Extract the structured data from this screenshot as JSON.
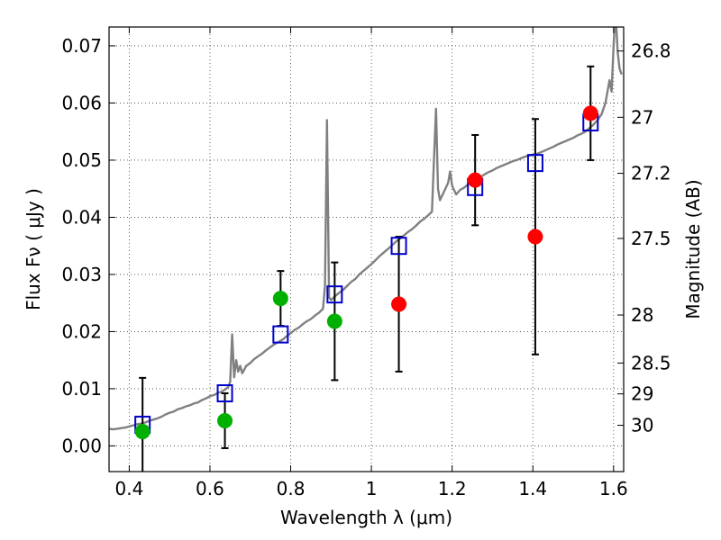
{
  "chart_data": {
    "type": "scatter",
    "xlabel": "Wavelength  λ (μm)",
    "ylabel": "Flux  Fν  ( μJy )",
    "y2label": "Magnitude (AB)",
    "xlim": [
      0.35,
      1.625
    ],
    "ylim": [
      -0.0045,
      0.0733
    ],
    "grid": true,
    "x_ticks": [
      {
        "value": 0.4,
        "label": "0.4"
      },
      {
        "value": 0.6,
        "label": "0.6"
      },
      {
        "value": 0.8,
        "label": "0.8"
      },
      {
        "value": 1.0,
        "label": "1"
      },
      {
        "value": 1.2,
        "label": "1.2"
      },
      {
        "value": 1.4,
        "label": "1.4"
      },
      {
        "value": 1.6,
        "label": "1.6"
      }
    ],
    "y_ticks": [
      {
        "value": 0.0,
        "label": "0.00"
      },
      {
        "value": 0.01,
        "label": "0.01"
      },
      {
        "value": 0.02,
        "label": "0.02"
      },
      {
        "value": 0.03,
        "label": "0.03"
      },
      {
        "value": 0.04,
        "label": "0.04"
      },
      {
        "value": 0.05,
        "label": "0.05"
      },
      {
        "value": 0.06,
        "label": "0.06"
      },
      {
        "value": 0.07,
        "label": "0.07"
      }
    ],
    "y2_ticks": [
      {
        "flux": 0.0691,
        "label": "26.8"
      },
      {
        "flux": 0.0575,
        "label": "27"
      },
      {
        "flux": 0.0477,
        "label": "27.2"
      },
      {
        "flux": 0.0363,
        "label": "27.5"
      },
      {
        "flux": 0.0229,
        "label": "28"
      },
      {
        "flux": 0.0145,
        "label": "28.5"
      },
      {
        "flux": 0.0091,
        "label": "29"
      },
      {
        "flux": 0.0036,
        "label": "30"
      }
    ],
    "template_sed": {
      "color": "#808080",
      "points": [
        [
          0.35,
          0.003
        ],
        [
          0.36,
          0.0029
        ],
        [
          0.37,
          0.003
        ],
        [
          0.38,
          0.0031
        ],
        [
          0.39,
          0.0032
        ],
        [
          0.4,
          0.0034
        ],
        [
          0.41,
          0.0036
        ],
        [
          0.42,
          0.0038
        ],
        [
          0.43,
          0.0039
        ],
        [
          0.44,
          0.0041
        ],
        [
          0.45,
          0.0044
        ],
        [
          0.46,
          0.0046
        ],
        [
          0.47,
          0.0048
        ],
        [
          0.48,
          0.0051
        ],
        [
          0.49,
          0.0055
        ],
        [
          0.5,
          0.0058
        ],
        [
          0.51,
          0.006
        ],
        [
          0.52,
          0.0064
        ],
        [
          0.53,
          0.0066
        ],
        [
          0.54,
          0.0069
        ],
        [
          0.55,
          0.0071
        ],
        [
          0.56,
          0.0074
        ],
        [
          0.57,
          0.0076
        ],
        [
          0.58,
          0.008
        ],
        [
          0.59,
          0.0083
        ],
        [
          0.6,
          0.0087
        ],
        [
          0.61,
          0.0089
        ],
        [
          0.62,
          0.0093
        ],
        [
          0.63,
          0.0095
        ],
        [
          0.64,
          0.01
        ],
        [
          0.645,
          0.0103
        ],
        [
          0.65,
          0.0112
        ],
        [
          0.655,
          0.0195
        ],
        [
          0.66,
          0.012
        ],
        [
          0.665,
          0.015
        ],
        [
          0.67,
          0.013
        ],
        [
          0.675,
          0.014
        ],
        [
          0.68,
          0.0127
        ],
        [
          0.69,
          0.014
        ],
        [
          0.7,
          0.0145
        ],
        [
          0.71,
          0.0152
        ],
        [
          0.72,
          0.0157
        ],
        [
          0.73,
          0.0162
        ],
        [
          0.74,
          0.0168
        ],
        [
          0.75,
          0.0173
        ],
        [
          0.76,
          0.0178
        ],
        [
          0.77,
          0.0182
        ],
        [
          0.78,
          0.0186
        ],
        [
          0.79,
          0.0192
        ],
        [
          0.8,
          0.0197
        ],
        [
          0.81,
          0.0203
        ],
        [
          0.82,
          0.0207
        ],
        [
          0.83,
          0.0213
        ],
        [
          0.84,
          0.0218
        ],
        [
          0.85,
          0.0222
        ],
        [
          0.86,
          0.0228
        ],
        [
          0.87,
          0.0233
        ],
        [
          0.88,
          0.024
        ],
        [
          0.885,
          0.028
        ],
        [
          0.89,
          0.057
        ],
        [
          0.895,
          0.026
        ],
        [
          0.9,
          0.0255
        ],
        [
          0.91,
          0.0262
        ],
        [
          0.92,
          0.0268
        ],
        [
          0.93,
          0.0273
        ],
        [
          0.94,
          0.028
        ],
        [
          0.95,
          0.0287
        ],
        [
          0.96,
          0.0292
        ],
        [
          0.97,
          0.03
        ],
        [
          0.98,
          0.0306
        ],
        [
          0.99,
          0.0312
        ],
        [
          1.0,
          0.0318
        ],
        [
          1.01,
          0.0325
        ],
        [
          1.02,
          0.0332
        ],
        [
          1.03,
          0.0338
        ],
        [
          1.04,
          0.0344
        ],
        [
          1.05,
          0.035
        ],
        [
          1.06,
          0.0357
        ],
        [
          1.07,
          0.0362
        ],
        [
          1.08,
          0.0368
        ],
        [
          1.09,
          0.0374
        ],
        [
          1.1,
          0.0379
        ],
        [
          1.11,
          0.0385
        ],
        [
          1.12,
          0.0392
        ],
        [
          1.13,
          0.0397
        ],
        [
          1.14,
          0.0403
        ],
        [
          1.15,
          0.041
        ],
        [
          1.155,
          0.05
        ],
        [
          1.16,
          0.059
        ],
        [
          1.165,
          0.045
        ],
        [
          1.17,
          0.043
        ],
        [
          1.18,
          0.0445
        ],
        [
          1.19,
          0.046
        ],
        [
          1.195,
          0.048
        ],
        [
          1.2,
          0.0455
        ],
        [
          1.21,
          0.044
        ],
        [
          1.22,
          0.0448
        ],
        [
          1.23,
          0.0452
        ],
        [
          1.24,
          0.0458
        ],
        [
          1.25,
          0.0462
        ],
        [
          1.26,
          0.0466
        ],
        [
          1.27,
          0.047
        ],
        [
          1.28,
          0.0475
        ],
        [
          1.29,
          0.0479
        ],
        [
          1.3,
          0.0482
        ],
        [
          1.31,
          0.0486
        ],
        [
          1.32,
          0.0489
        ],
        [
          1.33,
          0.0492
        ],
        [
          1.34,
          0.0495
        ],
        [
          1.35,
          0.0498
        ],
        [
          1.36,
          0.05
        ],
        [
          1.37,
          0.0503
        ],
        [
          1.38,
          0.0506
        ],
        [
          1.39,
          0.0508
        ],
        [
          1.4,
          0.0509
        ],
        [
          1.41,
          0.0511
        ],
        [
          1.42,
          0.0514
        ],
        [
          1.43,
          0.0517
        ],
        [
          1.44,
          0.052
        ],
        [
          1.45,
          0.0523
        ],
        [
          1.46,
          0.0527
        ],
        [
          1.47,
          0.053
        ],
        [
          1.48,
          0.0533
        ],
        [
          1.49,
          0.0536
        ],
        [
          1.5,
          0.0539
        ],
        [
          1.51,
          0.0543
        ],
        [
          1.52,
          0.0546
        ],
        [
          1.53,
          0.055
        ],
        [
          1.54,
          0.0556
        ],
        [
          1.55,
          0.0562
        ],
        [
          1.56,
          0.057
        ],
        [
          1.57,
          0.058
        ],
        [
          1.58,
          0.06
        ],
        [
          1.59,
          0.064
        ],
        [
          1.595,
          0.062
        ],
        [
          1.6,
          0.07
        ],
        [
          1.605,
          0.076
        ],
        [
          1.61,
          0.069
        ],
        [
          1.615,
          0.066
        ],
        [
          1.62,
          0.065
        ]
      ]
    },
    "series": [
      {
        "marker": "open-square",
        "color": "#0000cc",
        "points": [
          {
            "x": 0.433,
            "y": 0.0037
          },
          {
            "x": 0.637,
            "y": 0.0092
          },
          {
            "x": 0.775,
            "y": 0.0195
          },
          {
            "x": 0.909,
            "y": 0.0265
          },
          {
            "x": 1.068,
            "y": 0.035
          },
          {
            "x": 1.257,
            "y": 0.0453
          },
          {
            "x": 1.406,
            "y": 0.0495
          },
          {
            "x": 1.543,
            "y": 0.0566
          }
        ]
      },
      {
        "marker": "circle",
        "color": "#00b000",
        "points": [
          {
            "x": 0.433,
            "y": 0.0025,
            "err": 0.0094
          },
          {
            "x": 0.637,
            "y": 0.0044,
            "err": 0.0048
          },
          {
            "x": 0.775,
            "y": 0.0258,
            "err": 0.0048
          },
          {
            "x": 0.909,
            "y": 0.0218,
            "err": 0.0103
          }
        ]
      },
      {
        "marker": "circle",
        "color": "#ff0000",
        "points": [
          {
            "x": 1.068,
            "y": 0.0248,
            "err": 0.0118
          },
          {
            "x": 1.257,
            "y": 0.0465,
            "err": 0.0079
          },
          {
            "x": 1.406,
            "y": 0.0366,
            "err": 0.0206
          },
          {
            "x": 1.543,
            "y": 0.0582,
            "err": 0.0082
          }
        ]
      }
    ]
  }
}
